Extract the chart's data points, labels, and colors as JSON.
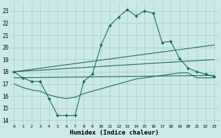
{
  "xlabel": "Humidex (Indice chaleur)",
  "xlim": [
    -0.5,
    23.5
  ],
  "ylim": [
    13.7,
    23.7
  ],
  "yticks": [
    14,
    15,
    16,
    17,
    18,
    19,
    20,
    21,
    22,
    23
  ],
  "xticks": [
    0,
    1,
    2,
    3,
    4,
    5,
    6,
    7,
    8,
    9,
    10,
    11,
    12,
    13,
    14,
    15,
    16,
    17,
    18,
    19,
    20,
    21,
    22,
    23
  ],
  "bg_color": "#cce8e8",
  "grid_color": "#aacccc",
  "line_color": "#1a6b60",
  "line1_x": [
    0,
    1,
    2,
    3,
    4,
    5,
    6,
    7,
    8,
    9,
    10,
    11,
    12,
    13,
    14,
    15,
    16,
    17,
    18,
    19,
    20,
    21,
    22,
    23
  ],
  "line1_y": [
    18.0,
    17.5,
    17.2,
    17.2,
    15.8,
    14.4,
    14.4,
    14.4,
    17.2,
    17.8,
    20.2,
    21.8,
    22.5,
    23.1,
    22.6,
    23.0,
    22.8,
    20.4,
    20.5,
    19.1,
    18.3,
    18.0,
    17.8,
    17.6
  ],
  "line2_x": [
    0,
    23
  ],
  "line2_y": [
    18.0,
    20.2
  ],
  "line3_x": [
    0,
    23
  ],
  "line3_y": [
    18.0,
    19.0
  ],
  "line4_x": [
    0,
    23
  ],
  "line4_y": [
    17.5,
    17.7
  ],
  "line5_x": [
    0,
    1,
    2,
    3,
    4,
    5,
    6,
    7,
    8,
    9,
    10,
    11,
    12,
    13,
    14,
    15,
    16,
    17,
    18,
    19,
    20,
    21,
    22,
    23
  ],
  "line5_y": [
    17.0,
    16.7,
    16.5,
    16.4,
    16.1,
    15.9,
    15.8,
    15.9,
    16.2,
    16.4,
    16.6,
    16.8,
    17.0,
    17.2,
    17.4,
    17.5,
    17.6,
    17.7,
    17.8,
    17.9,
    17.9,
    17.5,
    17.5,
    17.5
  ]
}
